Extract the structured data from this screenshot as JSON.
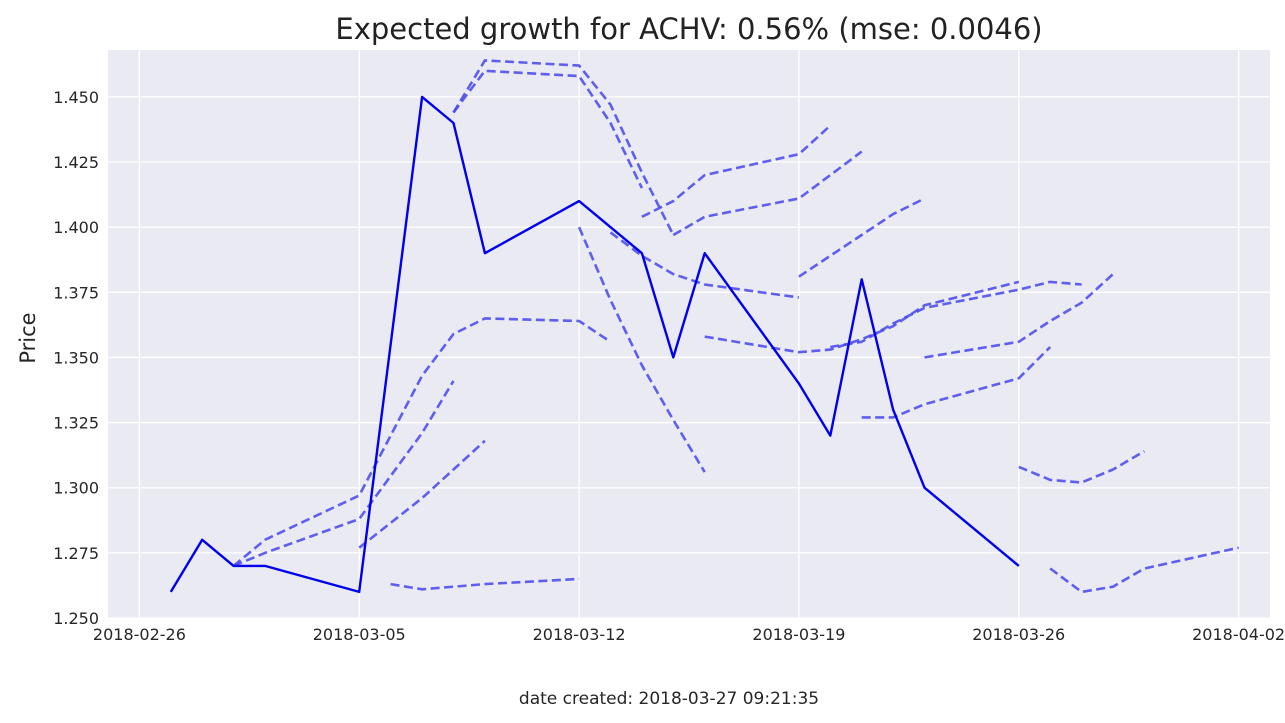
{
  "chart_data": {
    "type": "line",
    "title": "Expected growth for ACHV: 0.56% (mse: 0.0046)",
    "xlabel": "",
    "ylabel": "Price",
    "footer": "date created: 2018-03-27 09:21:35",
    "xlim": [
      "2018-02-25",
      "2018-04-03"
    ],
    "ylim": [
      1.25,
      1.468
    ],
    "x_ticks": [
      "2018-02-26",
      "2018-03-05",
      "2018-03-12",
      "2018-03-19",
      "2018-03-26",
      "2018-04-02"
    ],
    "y_ticks": [
      1.25,
      1.275,
      1.3,
      1.325,
      1.35,
      1.375,
      1.4,
      1.425,
      1.45
    ],
    "y_tick_labels": [
      "1.250",
      "1.275",
      "1.300",
      "1.325",
      "1.350",
      "1.375",
      "1.400",
      "1.425",
      "1.450"
    ],
    "grid": true,
    "colors": {
      "actual": "#0000ee",
      "forecast": "#4a4aee",
      "background": "#eaeaf2",
      "grid": "#ffffff"
    },
    "actual": {
      "x": [
        "2018-02-27",
        "2018-02-28",
        "2018-03-01",
        "2018-03-02",
        "2018-03-05",
        "2018-03-07",
        "2018-03-08",
        "2018-03-09",
        "2018-03-12",
        "2018-03-14",
        "2018-03-15",
        "2018-03-16",
        "2018-03-19",
        "2018-03-20",
        "2018-03-21",
        "2018-03-22",
        "2018-03-23",
        "2018-03-26"
      ],
      "y": [
        1.26,
        1.28,
        1.27,
        1.27,
        1.26,
        1.45,
        1.44,
        1.39,
        1.41,
        1.39,
        1.35,
        1.39,
        1.34,
        1.32,
        1.38,
        1.33,
        1.3,
        1.27
      ]
    },
    "forecasts": [
      {
        "x": [
          "2018-03-01",
          "2018-03-02",
          "2018-03-05",
          "2018-03-07",
          "2018-03-08",
          "2018-03-09",
          "2018-03-12",
          "2018-03-13"
        ],
        "y": [
          1.27,
          1.28,
          1.297,
          1.343,
          1.359,
          1.365,
          1.364,
          1.356
        ]
      },
      {
        "x": [
          "2018-03-01",
          "2018-03-02",
          "2018-03-05",
          "2018-03-07",
          "2018-03-08"
        ],
        "y": [
          1.27,
          1.275,
          1.288,
          1.321,
          1.341
        ]
      },
      {
        "x": [
          "2018-03-05",
          "2018-03-07",
          "2018-03-08",
          "2018-03-09"
        ],
        "y": [
          1.277,
          1.296,
          1.307,
          1.318
        ]
      },
      {
        "x": [
          "2018-03-06",
          "2018-03-07",
          "2018-03-08",
          "2018-03-09",
          "2018-03-12"
        ],
        "y": [
          1.263,
          1.261,
          1.262,
          1.263,
          1.265
        ]
      },
      {
        "x": [
          "2018-03-08",
          "2018-03-09",
          "2018-03-12",
          "2018-03-13",
          "2018-03-14",
          "2018-03-15"
        ],
        "y": [
          1.444,
          1.464,
          1.462,
          1.447,
          1.421,
          1.397
        ]
      },
      {
        "x": [
          "2018-03-08",
          "2018-03-09",
          "2018-03-12",
          "2018-03-13",
          "2018-03-14"
        ],
        "y": [
          1.444,
          1.46,
          1.458,
          1.44,
          1.415
        ]
      },
      {
        "x": [
          "2018-03-12",
          "2018-03-13",
          "2018-03-14",
          "2018-03-15",
          "2018-03-16"
        ],
        "y": [
          1.4,
          1.372,
          1.347,
          1.326,
          1.306
        ]
      },
      {
        "x": [
          "2018-03-13",
          "2018-03-14",
          "2018-03-15",
          "2018-03-16",
          "2018-03-19"
        ],
        "y": [
          1.398,
          1.389,
          1.382,
          1.378,
          1.373
        ]
      },
      {
        "x": [
          "2018-03-14",
          "2018-03-15",
          "2018-03-16",
          "2018-03-19",
          "2018-03-20"
        ],
        "y": [
          1.404,
          1.41,
          1.42,
          1.428,
          1.439
        ]
      },
      {
        "x": [
          "2018-03-15",
          "2018-03-16",
          "2018-03-19",
          "2018-03-20",
          "2018-03-21"
        ],
        "y": [
          1.397,
          1.404,
          1.411,
          1.42,
          1.429
        ]
      },
      {
        "x": [
          "2018-03-16",
          "2018-03-19",
          "2018-03-20",
          "2018-03-21",
          "2018-03-22",
          "2018-03-23",
          "2018-03-26"
        ],
        "y": [
          1.358,
          1.352,
          1.353,
          1.357,
          1.362,
          1.37,
          1.379
        ]
      },
      {
        "x": [
          "2018-03-19",
          "2018-03-20",
          "2018-03-21",
          "2018-03-22",
          "2018-03-23"
        ],
        "y": [
          1.381,
          1.389,
          1.397,
          1.405,
          1.411
        ]
      },
      {
        "x": [
          "2018-03-20",
          "2018-03-21",
          "2018-03-22",
          "2018-03-23",
          "2018-03-26",
          "2018-03-27",
          "2018-03-28"
        ],
        "y": [
          1.354,
          1.356,
          1.363,
          1.369,
          1.376,
          1.379,
          1.378
        ]
      },
      {
        "x": [
          "2018-03-21",
          "2018-03-22",
          "2018-03-23",
          "2018-03-26",
          "2018-03-27"
        ],
        "y": [
          1.327,
          1.327,
          1.332,
          1.342,
          1.354
        ]
      },
      {
        "x": [
          "2018-03-23",
          "2018-03-26",
          "2018-03-27",
          "2018-03-28",
          "2018-03-29"
        ],
        "y": [
          1.35,
          1.356,
          1.364,
          1.371,
          1.382
        ]
      },
      {
        "x": [
          "2018-03-26",
          "2018-03-27",
          "2018-03-28",
          "2018-03-29",
          "2018-03-30"
        ],
        "y": [
          1.308,
          1.303,
          1.302,
          1.307,
          1.314
        ]
      },
      {
        "x": [
          "2018-03-27",
          "2018-03-28",
          "2018-03-29",
          "2018-03-30",
          "2018-04-02"
        ],
        "y": [
          1.269,
          1.26,
          1.262,
          1.269,
          1.277
        ]
      }
    ]
  }
}
